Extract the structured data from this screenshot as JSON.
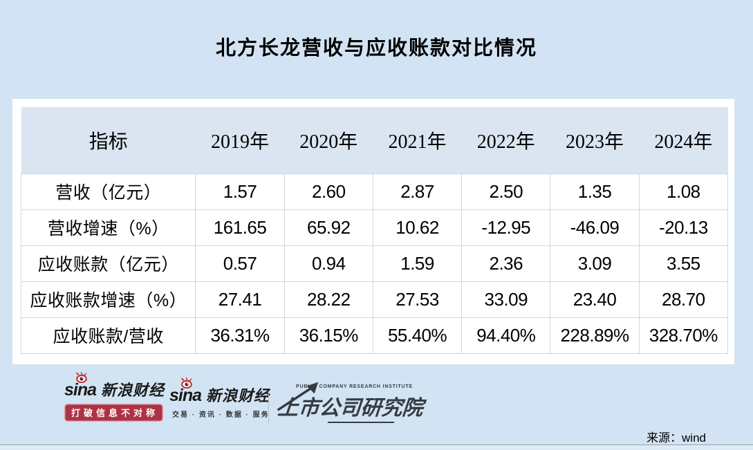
{
  "page": {
    "title": "北方长龙营收与应收账款对比情况",
    "source_label": "来源：wind"
  },
  "chart_data": {
    "type": "table",
    "title": "北方长龙营收与应收账款对比情况",
    "categories": [
      "2019年",
      "2020年",
      "2021年",
      "2022年",
      "2023年",
      "2024年"
    ],
    "series": [
      {
        "name": "营收（亿元）",
        "values": [
          1.57,
          2.6,
          2.87,
          2.5,
          1.35,
          1.08
        ]
      },
      {
        "name": "营收增速（%）",
        "values": [
          161.65,
          65.92,
          10.62,
          -12.95,
          -46.09,
          -20.13
        ]
      },
      {
        "name": "应收账款（亿元）",
        "values": [
          0.57,
          0.94,
          1.59,
          2.36,
          3.09,
          3.55
        ]
      },
      {
        "name": "应收账款增速（%）",
        "values": [
          27.41,
          28.22,
          27.53,
          33.09,
          23.4,
          28.7
        ]
      },
      {
        "name": "应收账款/营收",
        "values": [
          "36.31%",
          "36.15%",
          "55.40%",
          "94.40%",
          "228.89%",
          "328.70%"
        ]
      }
    ],
    "source": "wind"
  },
  "table": {
    "header": [
      "指标",
      "2019年",
      "2020年",
      "2021年",
      "2022年",
      "2023年",
      "2024年"
    ],
    "rows": [
      {
        "label": "营收（亿元）",
        "values": [
          "1.57",
          "2.60",
          "2.87",
          "2.50",
          "1.35",
          "1.08"
        ]
      },
      {
        "label": "营收增速（%）",
        "values": [
          "161.65",
          "65.92",
          "10.62",
          "-12.95",
          "-46.09",
          "-20.13"
        ]
      },
      {
        "label": "应收账款（亿元）",
        "values": [
          "0.57",
          "0.94",
          "1.59",
          "2.36",
          "3.09",
          "3.55"
        ]
      },
      {
        "label": "应收账款增速（%）",
        "values": [
          "27.41",
          "28.22",
          "27.53",
          "33.09",
          "23.40",
          "28.70"
        ]
      },
      {
        "label": "应收账款/营收",
        "values": [
          "36.31%",
          "36.15%",
          "55.40%",
          "94.40%",
          "228.89%",
          "328.70%"
        ]
      }
    ]
  },
  "footer": {
    "logo1": {
      "brand": "sina",
      "name": "新浪财经",
      "slogan": "打破信息不对称"
    },
    "logo2": {
      "brand": "sina",
      "name": "新浪财经",
      "services": "交易 · 资讯 · 数据 · 服务"
    },
    "institute": {
      "name_en": "PUBLIC COMPANY RESEARCH INSTITUTE",
      "name_cn": "上市公司研究院"
    }
  },
  "colors": {
    "page_background": "#d2e4f3",
    "card_background": "#ffffff",
    "header_row_background": "#dbe5f1",
    "table_border": "#ccd7e6",
    "sina_red": "#ad3246",
    "eye_red": "#d0282d",
    "institute_dark": "#363b42",
    "bottom_line": "#9aa0a8"
  }
}
